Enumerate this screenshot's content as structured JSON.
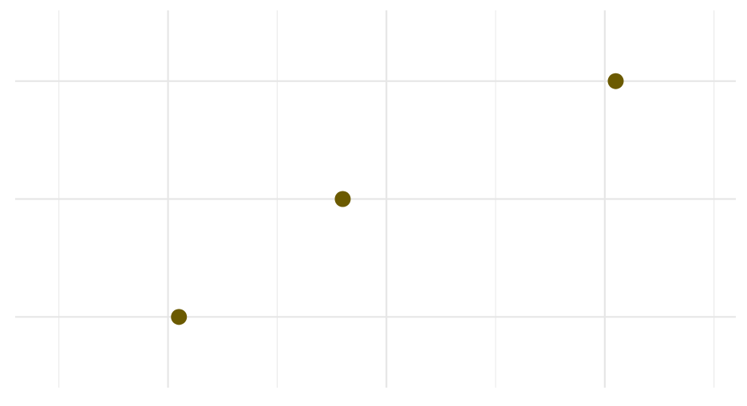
{
  "chart_data": {
    "type": "scatter",
    "title": "",
    "xlabel": "",
    "ylabel": "",
    "xlim": [
      0.6,
      7.2
    ],
    "ylim": [
      0.4,
      3.6
    ],
    "x_major_ticks": [
      2,
      4,
      6
    ],
    "x_minor_ticks": [
      1,
      3,
      5,
      7
    ],
    "y_major_ticks": [
      1,
      2,
      3
    ],
    "grid": true,
    "legend": "none",
    "points": [
      {
        "x": 2.1,
        "y": 1
      },
      {
        "x": 3.6,
        "y": 2
      },
      {
        "x": 6.1,
        "y": 3
      }
    ],
    "point_color": "#6b5a00",
    "grid_color": "#e6e6e6",
    "background": "#ffffff"
  }
}
